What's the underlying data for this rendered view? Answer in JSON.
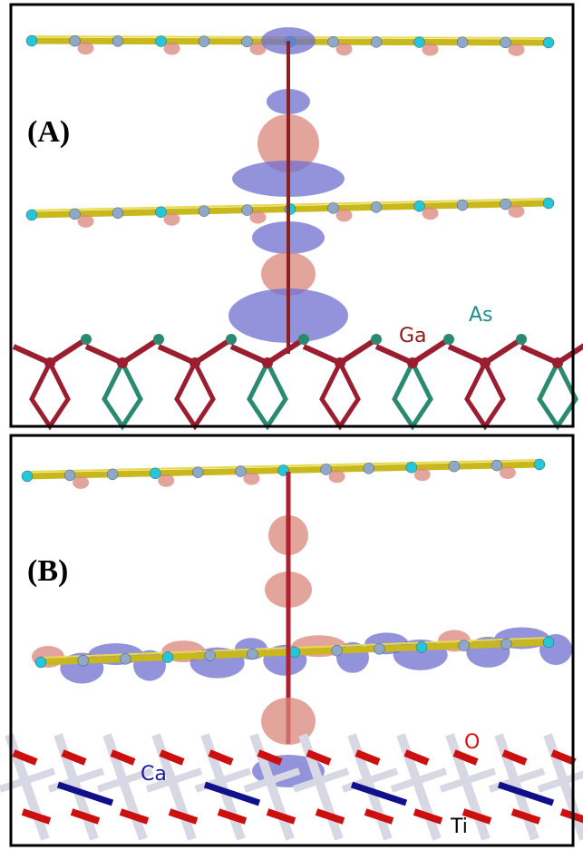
{
  "panels": [
    {
      "label": "(A)",
      "atom_labels": [
        "Ga",
        "As"
      ]
    },
    {
      "label": "(B)",
      "atom_labels": [
        "Ca",
        "O",
        "Ti"
      ]
    }
  ]
}
